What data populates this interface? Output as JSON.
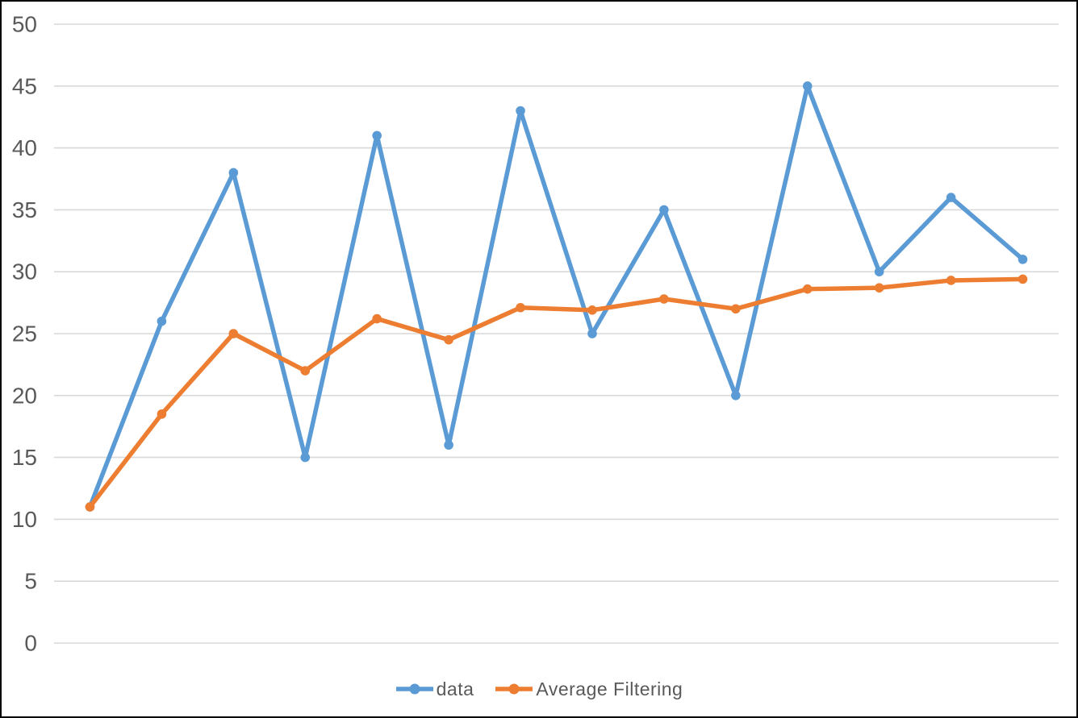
{
  "chart_data": {
    "type": "line",
    "title": "",
    "xlabel": "",
    "ylabel": "",
    "x": [
      1,
      2,
      3,
      4,
      5,
      6,
      7,
      8,
      9,
      10,
      11,
      12,
      13,
      14
    ],
    "x_axis_labels_visible": false,
    "series": [
      {
        "name": "data",
        "color": "#5B9BD5",
        "values": [
          11,
          26,
          38,
          15,
          41,
          16,
          43,
          25,
          35,
          20,
          45,
          30,
          36,
          31
        ]
      },
      {
        "name": "Average Filtering",
        "color": "#ED7D31",
        "values": [
          11,
          18.5,
          25,
          22,
          26.2,
          24.5,
          27.1,
          26.9,
          27.8,
          27,
          28.6,
          28.7,
          29.3,
          29.4
        ]
      }
    ],
    "ylim": [
      0,
      50
    ],
    "yticks": [
      0,
      5,
      10,
      15,
      20,
      25,
      30,
      35,
      40,
      45,
      50
    ],
    "grid": "horizontal",
    "legend_position": "bottom",
    "marker": "circle"
  },
  "colors": {
    "background": "#FFFFFF",
    "gridline": "#D9D9D9",
    "axis_text": "#595959",
    "frame_border": "#000000"
  }
}
